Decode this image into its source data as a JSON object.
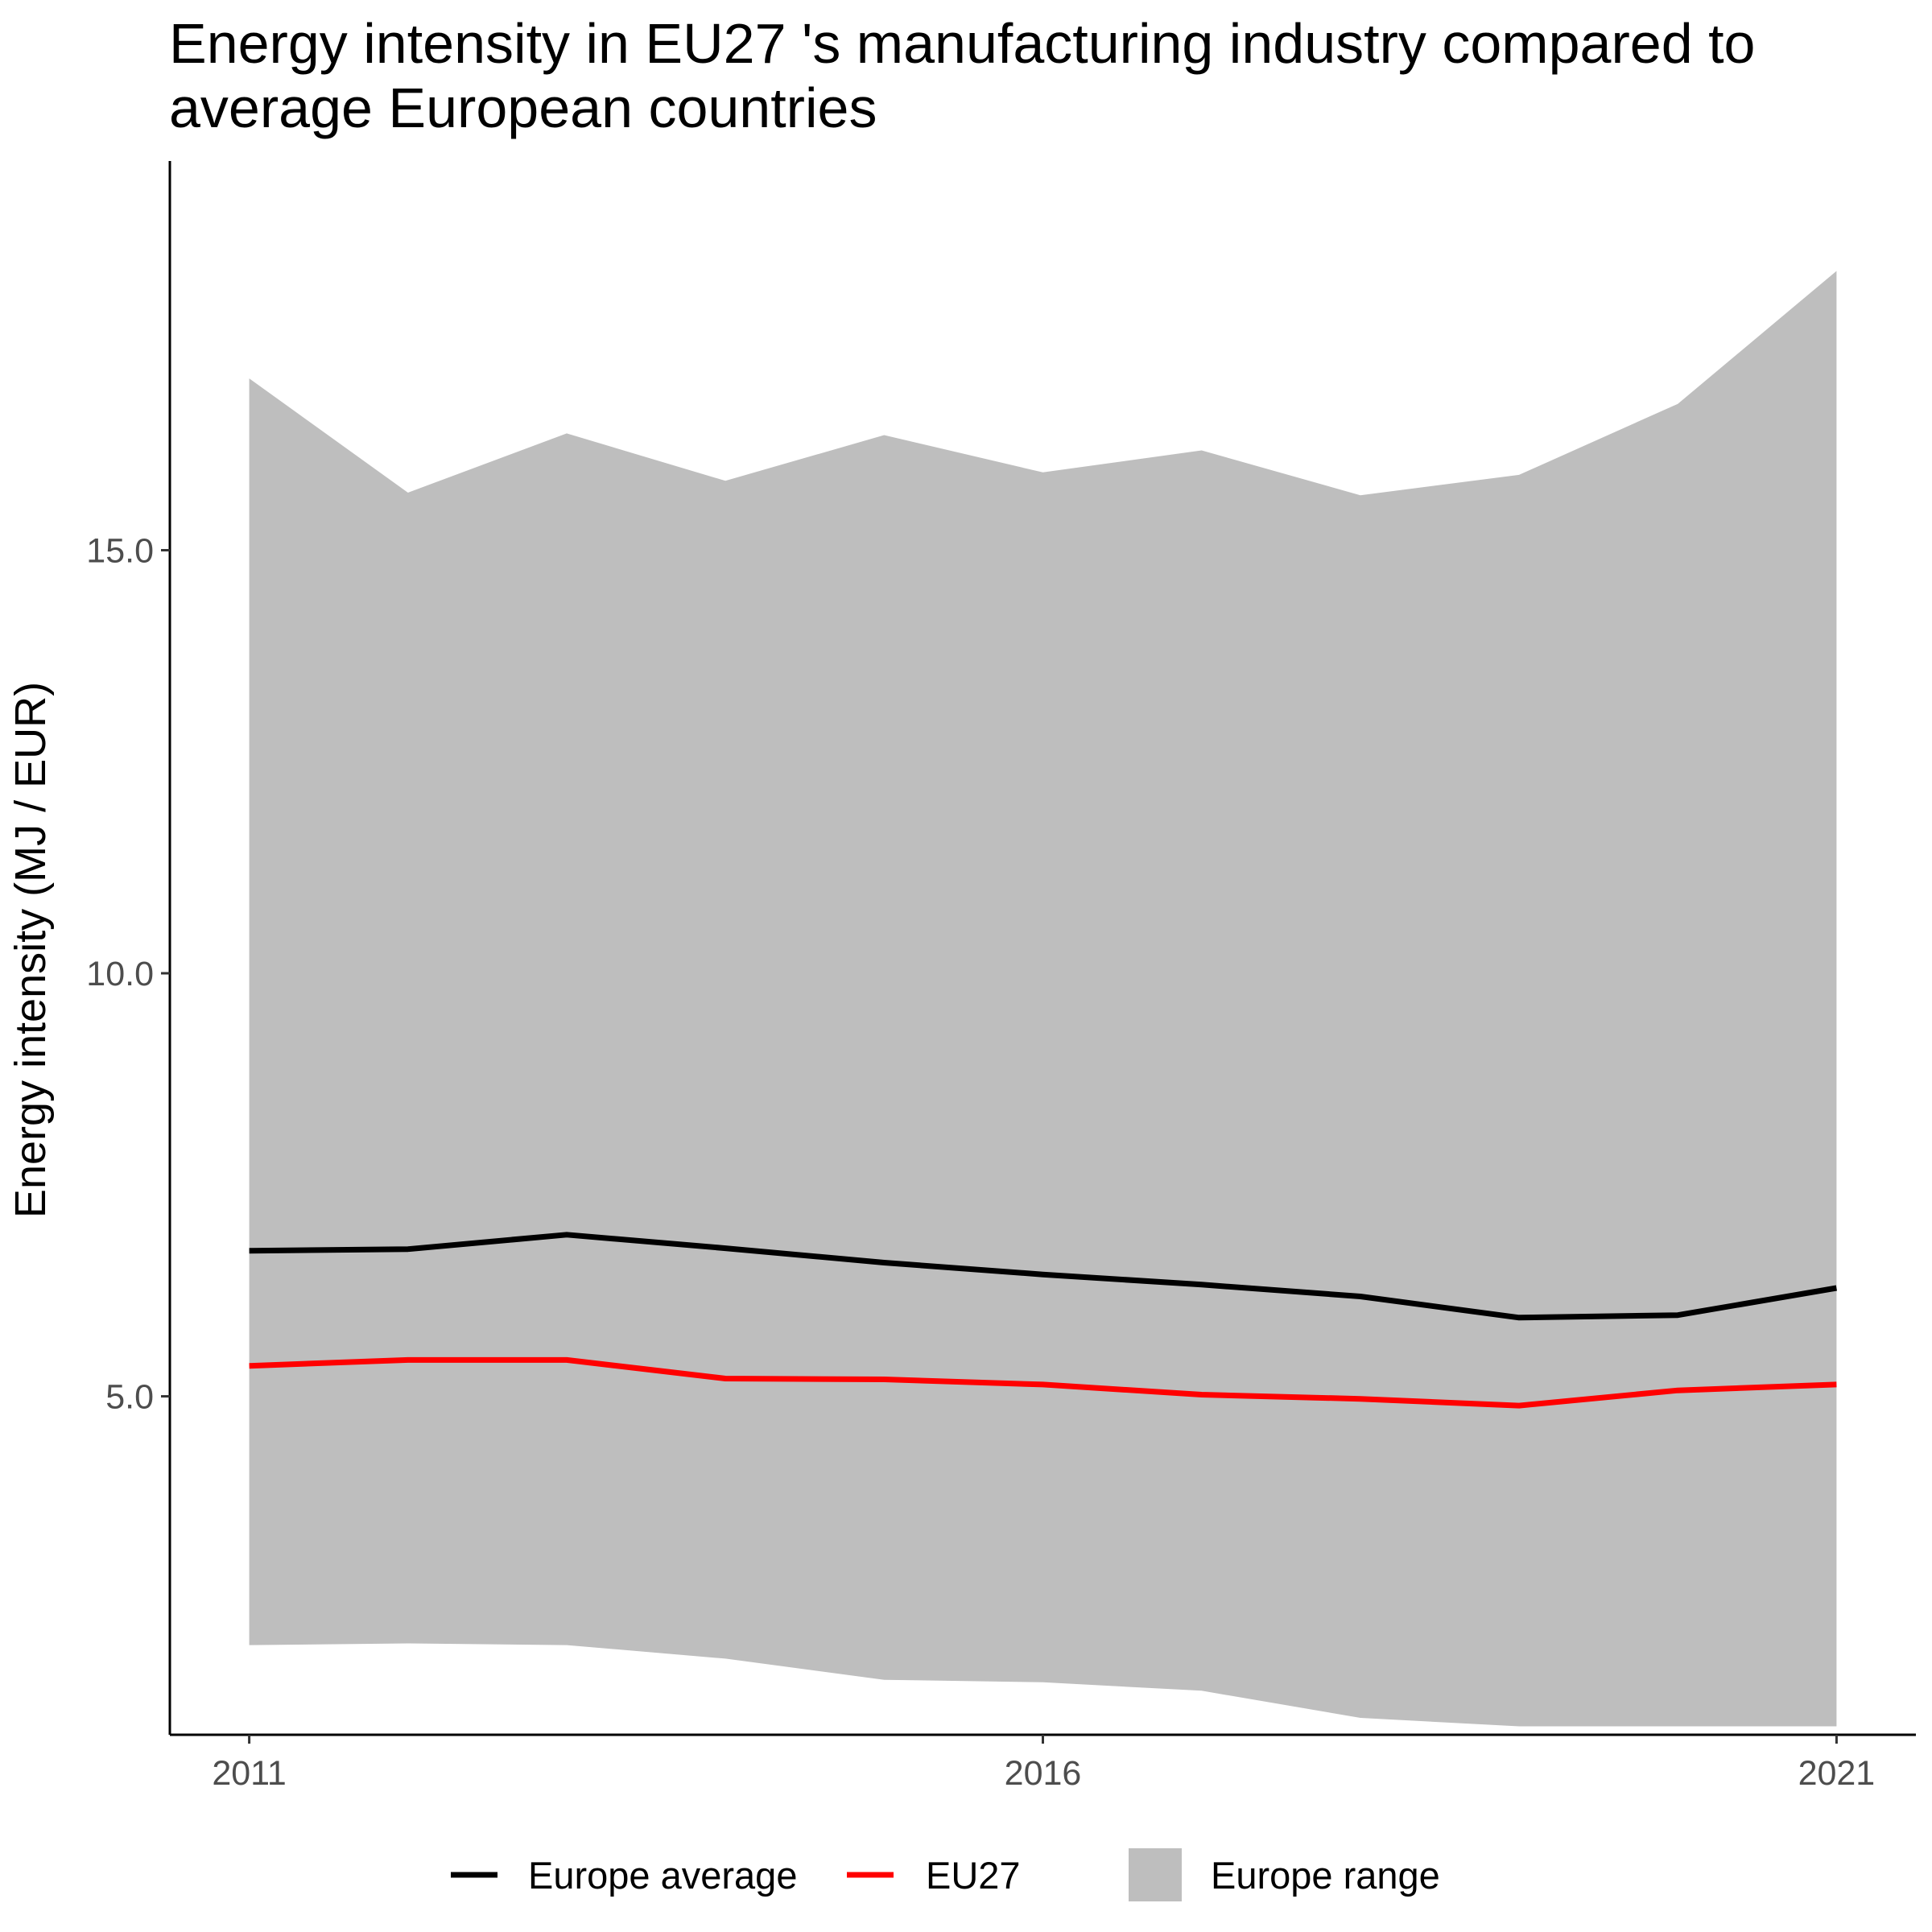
{
  "chart_data": {
    "type": "area",
    "title": "Energy intensity in EU27 's manufacturing industry compared to average European countries",
    "title_lines": [
      "Energy intensity in EU27 's manufacturing industry compared to",
      "average European countries"
    ],
    "xlabel": "",
    "ylabel": "Energy intensity (MJ / EUR)",
    "x": [
      2011,
      2012,
      2013,
      2014,
      2015,
      2016,
      2017,
      2018,
      2019,
      2020,
      2021
    ],
    "xlim": [
      2010.5,
      2021.5
    ],
    "ylim": [
      1.0,
      19.6
    ],
    "x_ticks": [
      2011,
      2016,
      2021
    ],
    "x_tick_labels": [
      "2011",
      "2016",
      "2021"
    ],
    "y_ticks": [
      5.0,
      10.0,
      15.0
    ],
    "y_tick_labels": [
      "5.0",
      "10.0",
      "15.0"
    ],
    "grid": false,
    "legend_position": "bottom",
    "series": [
      {
        "name": "Europe average",
        "kind": "line",
        "color": "#000000",
        "values": [
          6.72,
          6.74,
          6.91,
          6.75,
          6.58,
          6.44,
          6.32,
          6.18,
          5.93,
          5.96,
          6.28
        ]
      },
      {
        "name": "EU27",
        "kind": "line",
        "color": "#ff0000",
        "values": [
          5.36,
          5.43,
          5.43,
          5.21,
          5.2,
          5.14,
          5.02,
          4.97,
          4.89,
          5.07,
          5.14
        ]
      }
    ],
    "range": {
      "name": "Europe range",
      "kind": "ribbon",
      "color": "#bebebe",
      "lower": [
        2.06,
        2.08,
        2.06,
        1.9,
        1.65,
        1.62,
        1.52,
        1.2,
        1.1,
        1.1,
        1.1
      ],
      "upper": [
        17.03,
        15.68,
        16.38,
        15.82,
        16.36,
        15.92,
        16.18,
        15.65,
        15.89,
        16.73,
        18.3
      ]
    }
  }
}
